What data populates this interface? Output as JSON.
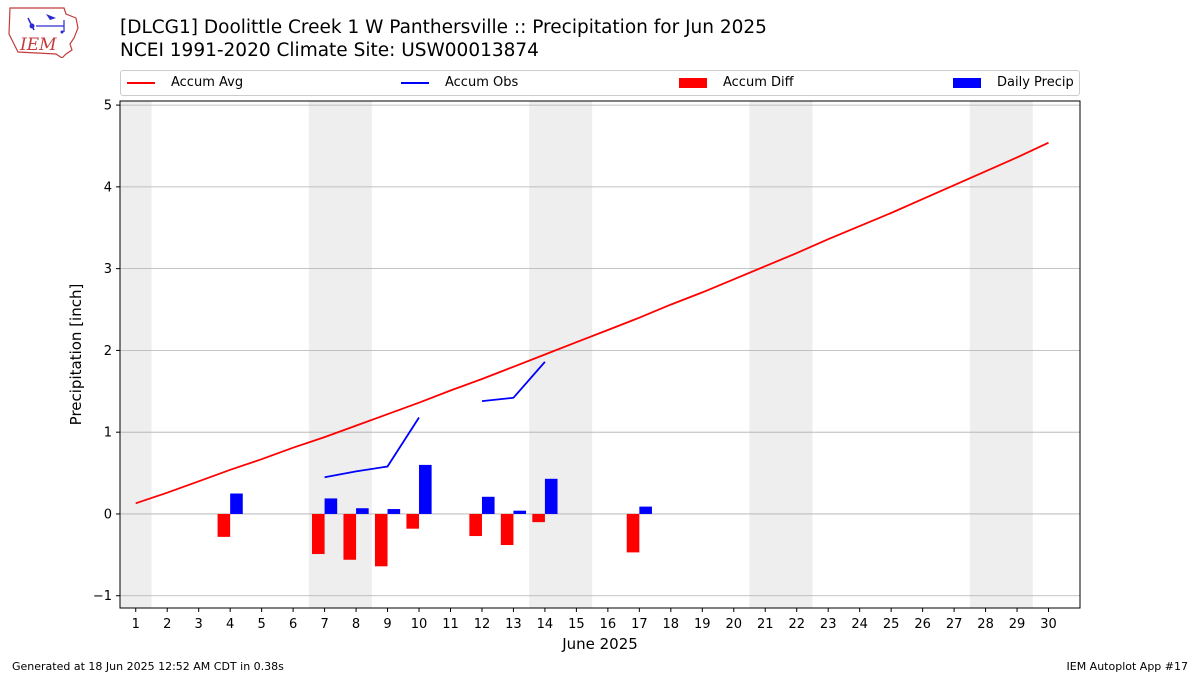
{
  "header": {
    "title_line1": "[DLCG1] Doolittle Creek 1 W Panthersville :: Precipitation for Jun 2025",
    "title_line2": "NCEI 1991-2020 Climate Site: USW00013874",
    "logo_text": "IEM"
  },
  "footer": {
    "left": "Generated at 18 Jun 2025 12:52 AM CDT in 0.38s",
    "right": "IEM Autoplot App #17"
  },
  "legend": {
    "items": [
      {
        "label": "Accum Avg",
        "kind": "line",
        "color": "#ff0000"
      },
      {
        "label": "Accum Obs",
        "kind": "line",
        "color": "#0000ff"
      },
      {
        "label": "Accum Diff",
        "kind": "bar",
        "color": "#ff0000"
      },
      {
        "label": "Daily Precip",
        "kind": "bar",
        "color": "#0000ff"
      }
    ]
  },
  "chart_data": {
    "type": "bar",
    "title": "[DLCG1] Doolittle Creek 1 W Panthersville :: Precipitation for Jun 2025",
    "subtitle": "NCEI 1991-2020 Climate Site: USW00013874",
    "xlabel": "June 2025",
    "ylabel": "Precipitation [inch]",
    "xlim": [
      0.5,
      31
    ],
    "ylim": [
      -1.15,
      5.05
    ],
    "grid": true,
    "legend_position": "top",
    "y_ticks": [
      -1,
      0,
      1,
      2,
      3,
      4,
      5
    ],
    "x": [
      1,
      2,
      3,
      4,
      5,
      6,
      7,
      8,
      9,
      10,
      11,
      12,
      13,
      14,
      15,
      16,
      17,
      18,
      19,
      20,
      21,
      22,
      23,
      24,
      25,
      26,
      27,
      28,
      29,
      30
    ],
    "weekend_shading": [
      [
        0.5,
        1.5
      ],
      [
        6.5,
        8.5
      ],
      [
        13.5,
        15.5
      ],
      [
        20.5,
        22.5
      ],
      [
        27.5,
        29.5
      ]
    ],
    "series": [
      {
        "name": "Accum Avg",
        "type": "line",
        "color": "#ff0000",
        "values": [
          0.13,
          0.26,
          0.4,
          0.54,
          0.67,
          0.81,
          0.94,
          1.08,
          1.22,
          1.36,
          1.51,
          1.65,
          1.8,
          1.95,
          2.1,
          2.25,
          2.4,
          2.56,
          2.71,
          2.87,
          3.03,
          3.19,
          3.36,
          3.52,
          3.68,
          3.85,
          4.02,
          4.19,
          4.36,
          4.54
        ]
      },
      {
        "name": "Accum Obs",
        "type": "line",
        "color": "#0000ff",
        "values": [
          null,
          null,
          null,
          null,
          null,
          null,
          0.45,
          0.52,
          0.58,
          1.18,
          null,
          1.38,
          1.42,
          1.86,
          null,
          null,
          null,
          null,
          null,
          null,
          null,
          null,
          null,
          null,
          null,
          null,
          null,
          null,
          null,
          null
        ]
      },
      {
        "name": "Accum Diff",
        "type": "bar",
        "color": "#ff0000",
        "values": [
          null,
          null,
          null,
          -0.28,
          null,
          null,
          -0.49,
          -0.56,
          -0.64,
          -0.18,
          null,
          -0.27,
          -0.38,
          -0.1,
          null,
          null,
          -0.47,
          null,
          null,
          null,
          null,
          null,
          null,
          null,
          null,
          null,
          null,
          null,
          null,
          null
        ]
      },
      {
        "name": "Daily Precip",
        "type": "bar",
        "color": "#0000ff",
        "values": [
          null,
          null,
          null,
          0.25,
          null,
          null,
          0.19,
          0.07,
          0.06,
          0.6,
          null,
          0.21,
          0.04,
          0.43,
          null,
          null,
          0.09,
          null,
          null,
          null,
          null,
          null,
          null,
          null,
          null,
          null,
          null,
          null,
          null,
          null
        ]
      }
    ]
  }
}
